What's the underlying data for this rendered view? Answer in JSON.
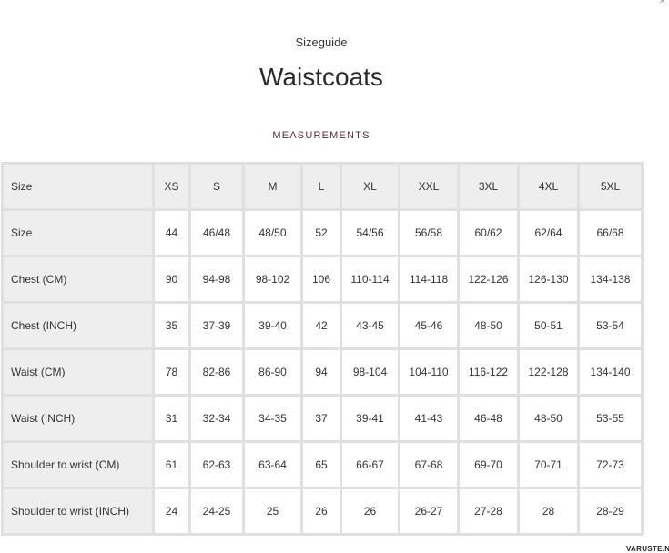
{
  "subtitle": "Sizeguide",
  "title": "Waistcoats",
  "section": "MEASUREMENTS",
  "close_icon": "close-icon",
  "watermark": "VARUSTE.NET",
  "table": {
    "header": [
      "Size",
      "XS",
      "S",
      "M",
      "L",
      "XL",
      "XXL",
      "3XL",
      "4XL",
      "5XL"
    ],
    "rows": [
      [
        "Size",
        "44",
        "46/48",
        "48/50",
        "52",
        "54/56",
        "56/58",
        "60/62",
        "62/64",
        "66/68"
      ],
      [
        "Chest (CM)",
        "90",
        "94-98",
        "98-102",
        "106",
        "110-114",
        "114-118",
        "122-126",
        "126-130",
        "134-138"
      ],
      [
        "Chest (INCH)",
        "35",
        "37-39",
        "39-40",
        "42",
        "43-45",
        "45-46",
        "48-50",
        "50-51",
        "53-54"
      ],
      [
        "Waist (CM)",
        "78",
        "82-86",
        "86-90",
        "94",
        "98-104",
        "104-110",
        "116-122",
        "122-128",
        "134-140"
      ],
      [
        "Waist (INCH)",
        "31",
        "32-34",
        "34-35",
        "37",
        "39-41",
        "41-43",
        "46-48",
        "48-50",
        "53-55"
      ],
      [
        "Shoulder to wrist (CM)",
        "61",
        "62-63",
        "63-64",
        "65",
        "66-67",
        "67-68",
        "69-70",
        "70-71",
        "72-73"
      ],
      [
        "Shoulder to wrist (INCH)",
        "24",
        "24-25",
        "25",
        "26",
        "26",
        "26-27",
        "27-28",
        "28",
        "28-29"
      ]
    ]
  }
}
